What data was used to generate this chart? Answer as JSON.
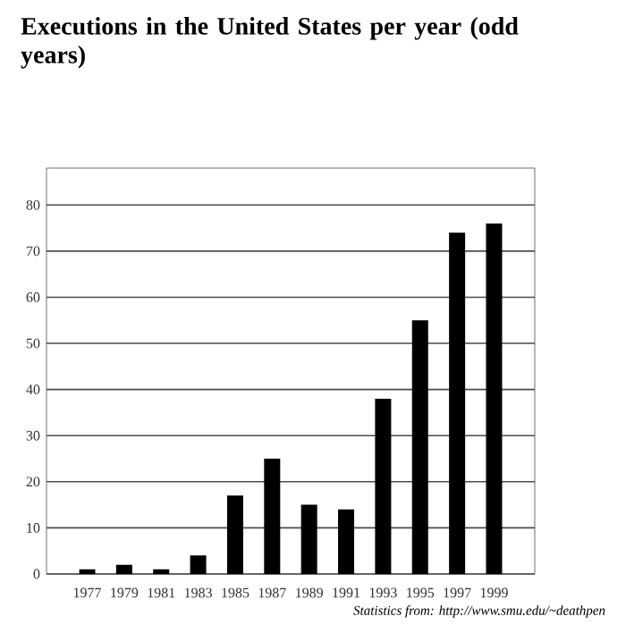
{
  "chart_data": {
    "type": "bar",
    "title": "Executions in the United States per year (odd years)",
    "categories": [
      "1977",
      "1979",
      "1981",
      "1983",
      "1985",
      "1987",
      "1989",
      "1991",
      "1993",
      "1995",
      "1997",
      "1999"
    ],
    "values": [
      1,
      2,
      1,
      4,
      17,
      25,
      15,
      14,
      38,
      55,
      74,
      76
    ],
    "color": "#000000",
    "ylim": [
      0,
      88
    ],
    "yticks": [
      0,
      10,
      20,
      30,
      40,
      50,
      60,
      70,
      80
    ],
    "grid": "y",
    "annotations": [
      "Statistics  from: http://www.smu.edu/~deathpen"
    ]
  }
}
